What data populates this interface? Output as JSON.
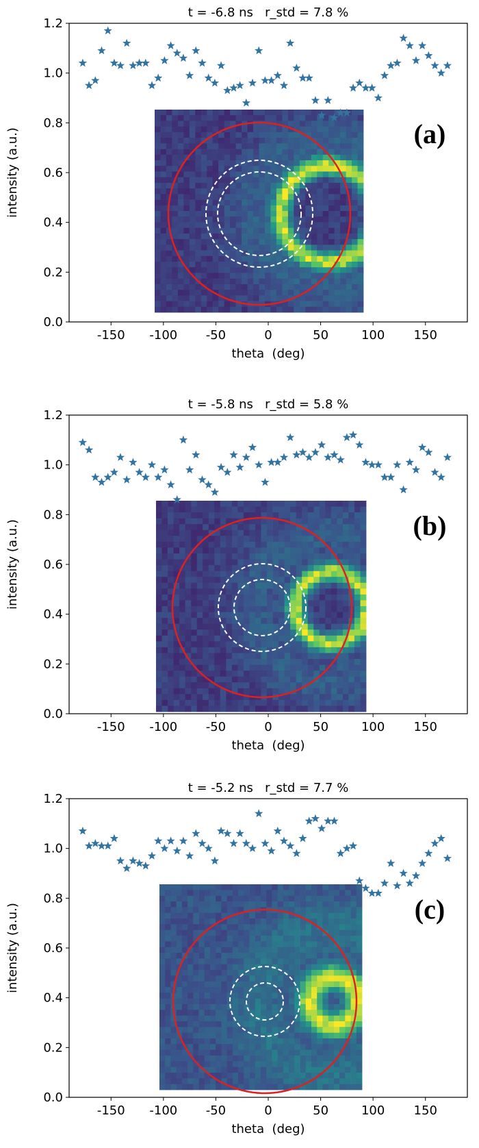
{
  "chart_data": [
    {
      "type": "scatter",
      "title": "t = -6.8 ns   r_std = 7.8 %",
      "annotation": "(a)",
      "xlabel": "theta  (deg)",
      "ylabel": "intensity (a.u.)",
      "marker": "star",
      "color": "#3274a1",
      "xlim": [
        -190,
        190
      ],
      "xticks": [
        -150,
        -100,
        -50,
        0,
        50,
        100,
        150
      ],
      "ylim": [
        0,
        1.2
      ],
      "yticks": [
        {
          "value": 0,
          "label": "0.0"
        },
        0.2,
        0.4,
        0.6,
        0.8,
        {
          "value": 1,
          "label": "1.0"
        },
        1.2
      ],
      "x": [
        -177,
        -171,
        -165,
        -159,
        -153,
        -147,
        -141,
        -135,
        -129,
        -123,
        -117,
        -111,
        -105,
        -99,
        -93,
        -87,
        -81,
        -75,
        -69,
        -63,
        -57,
        -51,
        -45,
        -39,
        -33,
        -27,
        -21,
        -15,
        -9,
        -3,
        3,
        9,
        15,
        21,
        27,
        33,
        39,
        45,
        51,
        57,
        63,
        69,
        75,
        81,
        87,
        93,
        99,
        105,
        111,
        117,
        123,
        129,
        135,
        141,
        147,
        153,
        159,
        165,
        171
      ],
      "values": [
        1.04,
        0.95,
        0.97,
        1.09,
        1.17,
        1.04,
        1.03,
        1.12,
        1.03,
        1.04,
        1.04,
        0.95,
        0.98,
        1.05,
        1.11,
        1.08,
        1.06,
        0.99,
        1.09,
        1.04,
        0.98,
        0.96,
        1.03,
        0.93,
        0.94,
        0.95,
        0.88,
        0.96,
        1.09,
        0.97,
        0.97,
        0.99,
        0.95,
        1.12,
        1.02,
        0.98,
        0.98,
        0.89,
        0.83,
        0.89,
        0.82,
        0.84,
        0.84,
        0.94,
        0.96,
        0.94,
        0.94,
        0.9,
        0.99,
        1.03,
        1.04,
        1.14,
        1.11,
        1.05,
        1.11,
        1.07,
        1.03,
        1.0,
        1.03
      ]
    },
    {
      "type": "scatter",
      "title": "t = -5.8 ns   r_std = 5.8 %",
      "annotation": "(b)",
      "xlabel": "theta  (deg)",
      "ylabel": "intensity (a.u.)",
      "marker": "star",
      "color": "#3274a1",
      "xlim": [
        -190,
        190
      ],
      "xticks": [
        -150,
        -100,
        -50,
        0,
        50,
        100,
        150
      ],
      "ylim": [
        0,
        1.2
      ],
      "yticks": [
        {
          "value": 0,
          "label": "0.0"
        },
        0.2,
        0.4,
        0.6,
        0.8,
        {
          "value": 1,
          "label": "1.0"
        },
        1.2
      ],
      "x": [
        -177,
        -171,
        -165,
        -159,
        -153,
        -147,
        -141,
        -135,
        -129,
        -123,
        -117,
        -111,
        -105,
        -99,
        -93,
        -87,
        -81,
        -75,
        -69,
        -63,
        -57,
        -51,
        -45,
        -39,
        -33,
        -27,
        -21,
        -15,
        -9,
        -3,
        3,
        9,
        15,
        21,
        27,
        33,
        39,
        45,
        51,
        57,
        63,
        69,
        75,
        81,
        87,
        93,
        99,
        105,
        111,
        117,
        123,
        129,
        135,
        141,
        147,
        153,
        159,
        165,
        171
      ],
      "values": [
        1.09,
        1.06,
        0.95,
        0.93,
        0.95,
        0.97,
        1.03,
        0.94,
        1.01,
        0.97,
        0.95,
        1.0,
        0.95,
        0.98,
        0.92,
        0.86,
        1.1,
        0.98,
        1.04,
        0.94,
        0.92,
        0.89,
        0.99,
        0.97,
        1.04,
        0.99,
        1.03,
        1.07,
        1.0,
        0.93,
        1.01,
        1.01,
        1.03,
        1.11,
        1.04,
        1.05,
        1.03,
        1.05,
        1.08,
        1.03,
        1.04,
        1.02,
        1.11,
        1.12,
        1.08,
        1.01,
        1.0,
        1.0,
        0.95,
        0.95,
        1.0,
        0.9,
        1.01,
        0.98,
        1.07,
        1.05,
        0.97,
        0.95,
        1.03
      ]
    },
    {
      "type": "scatter",
      "title": "t = -5.2 ns   r_std = 7.7 %",
      "annotation": "(c)",
      "xlabel": "theta  (deg)",
      "ylabel": "intensity (a.u.)",
      "marker": "star",
      "color": "#3274a1",
      "xlim": [
        -190,
        190
      ],
      "xticks": [
        -150,
        -100,
        -50,
        0,
        50,
        100,
        150
      ],
      "ylim": [
        0,
        1.2
      ],
      "yticks": [
        {
          "value": 0,
          "label": "0.0"
        },
        0.2,
        0.4,
        0.6,
        0.8,
        {
          "value": 1,
          "label": "1.0"
        },
        1.2
      ],
      "x": [
        -177,
        -171,
        -165,
        -159,
        -153,
        -147,
        -141,
        -135,
        -129,
        -123,
        -117,
        -111,
        -105,
        -99,
        -93,
        -87,
        -81,
        -75,
        -69,
        -63,
        -57,
        -51,
        -45,
        -39,
        -33,
        -27,
        -21,
        -15,
        -9,
        -3,
        3,
        9,
        15,
        21,
        27,
        33,
        39,
        45,
        51,
        57,
        63,
        69,
        75,
        81,
        87,
        93,
        99,
        105,
        111,
        117,
        123,
        129,
        135,
        141,
        147,
        153,
        159,
        165,
        171
      ],
      "values": [
        1.07,
        1.01,
        1.02,
        1.01,
        1.01,
        1.04,
        0.95,
        0.92,
        0.95,
        0.94,
        0.93,
        0.97,
        1.03,
        1.0,
        1.03,
        0.99,
        1.03,
        0.97,
        1.06,
        1.02,
        1.0,
        0.95,
        1.07,
        1.06,
        1.02,
        1.06,
        1.02,
        1.0,
        1.14,
        1.02,
        0.99,
        1.07,
        1.03,
        1.01,
        0.98,
        1.04,
        1.11,
        1.12,
        1.08,
        1.11,
        1.11,
        0.98,
        1.0,
        1.01,
        0.87,
        0.84,
        0.82,
        0.82,
        0.86,
        0.94,
        0.85,
        0.9,
        0.86,
        0.89,
        0.94,
        0.98,
        1.02,
        1.04,
        0.96
      ]
    }
  ]
}
